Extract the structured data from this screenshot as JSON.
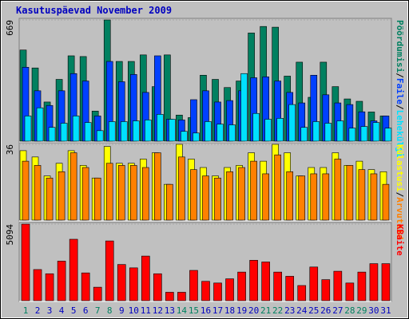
{
  "chart_data": [
    {
      "type": "bar",
      "title": "Kasutuspäevad November 2009",
      "legend_separator": "/",
      "ylim": [
        0,
        669
      ],
      "yticks": [
        669
      ],
      "series": [
        {
          "name": "Pöördumisi",
          "color": "#008060",
          "values": [
            503,
            404,
            216,
            341,
            471,
            467,
            166,
            669,
            440,
            440,
            476,
            301,
            476,
            144,
            130,
            364,
            341,
            296,
            332,
            597,
            633,
            629,
            359,
            436,
            242,
            436,
            301,
            233,
            220,
            161,
            139
          ]
        },
        {
          "name": "Faile",
          "color": "#0040ff",
          "values": [
            408,
            278,
            197,
            278,
            373,
            332,
            139,
            440,
            328,
            368,
            269,
            471,
            121,
            117,
            229,
            278,
            216,
            224,
            278,
            350,
            355,
            332,
            269,
            211,
            364,
            256,
            211,
            202,
            162,
            112,
            139
          ]
        },
        {
          "name": "Lehekülgi",
          "color": "#00e0ff",
          "values": [
            139,
            184,
            76,
            99,
            139,
            103,
            58,
            108,
            108,
            112,
            117,
            148,
            121,
            54,
            45,
            108,
            94,
            90,
            373,
            153,
            121,
            126,
            202,
            76,
            108,
            99,
            112,
            72,
            81,
            103,
            72
          ]
        }
      ]
    },
    {
      "type": "bar",
      "legend_separator": "/",
      "ylim": [
        0,
        36
      ],
      "yticks": [
        36
      ],
      "series": [
        {
          "name": "Külastusi",
          "color": "#ffff00",
          "values": [
            33,
            30,
            21,
            27,
            33,
            26,
            20,
            35,
            27,
            27,
            29,
            32,
            17,
            36,
            29,
            25,
            21,
            25,
            26,
            32,
            28,
            36,
            32,
            21,
            25,
            25,
            32,
            26,
            28,
            24,
            23
          ]
        },
        {
          "name": "Arvuteid",
          "color": "#ff8000",
          "values": [
            28,
            26,
            20,
            23,
            32,
            25,
            20,
            27,
            26,
            26,
            25,
            32,
            17,
            30,
            24,
            21,
            20,
            23,
            25,
            28,
            22,
            31,
            23,
            21,
            22,
            22,
            29,
            26,
            24,
            22,
            17
          ]
        }
      ]
    },
    {
      "type": "bar",
      "ylim": [
        0,
        5094
      ],
      "yticks": [
        5094
      ],
      "categories": [
        "1",
        "2",
        "3",
        "4",
        "5",
        "6",
        "7",
        "8",
        "9",
        "10",
        "11",
        "12",
        "13",
        "14",
        "15",
        "16",
        "17",
        "18",
        "19",
        "20",
        "21",
        "22",
        "23",
        "24",
        "25",
        "26",
        "27",
        "28",
        "29",
        "30",
        "31"
      ],
      "category_colors": [
        "#008060",
        "#0000c0",
        "#0000c0",
        "#0000c0",
        "#0000c0",
        "#0000c0",
        "#008060",
        "#008060",
        "#0000c0",
        "#0000c0",
        "#0000c0",
        "#0000c0",
        "#0000c0",
        "#008060",
        "#008060",
        "#0000c0",
        "#0000c0",
        "#0000c0",
        "#0000c0",
        "#0000c0",
        "#008060",
        "#008060",
        "#0000c0",
        "#0000c0",
        "#0000c0",
        "#0000c0",
        "#0000c0",
        "#008060",
        "#008060",
        "#0000c0",
        "#0000c0"
      ],
      "series": [
        {
          "name": "KBaite",
          "color": "#ff0000",
          "values": [
            5094,
            2071,
            1791,
            2631,
            4086,
            1847,
            896,
            3974,
            2407,
            2183,
            2967,
            1791,
            560,
            560,
            2015,
            1287,
            1175,
            1455,
            1903,
            2687,
            2575,
            1903,
            1623,
            1008,
            2239,
            1399,
            1959,
            1175,
            1903,
            2463,
            2463
          ]
        }
      ]
    }
  ]
}
